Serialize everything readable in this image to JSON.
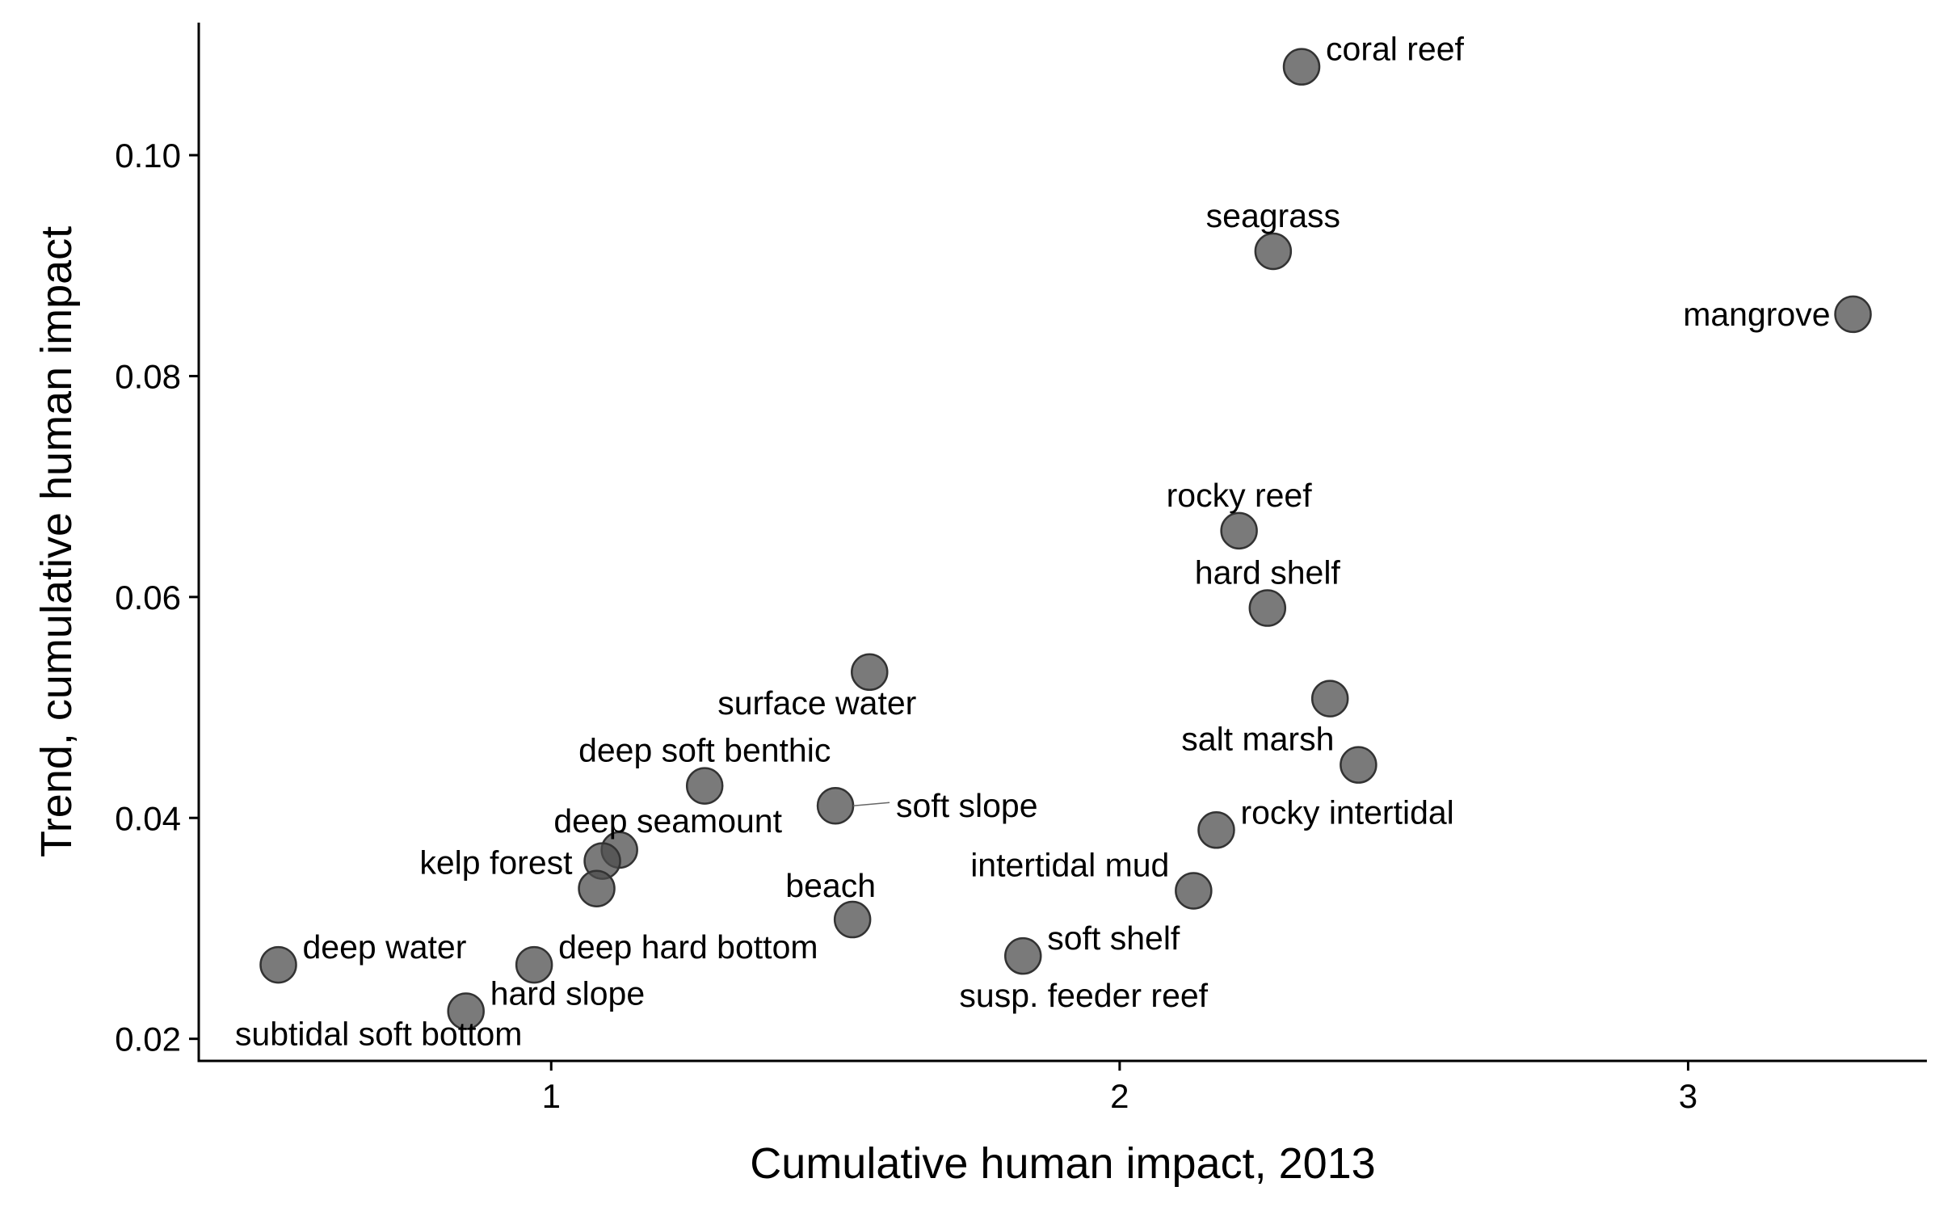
{
  "chart_data": {
    "type": "scatter",
    "title": "",
    "xlabel": "Cumulative human impact, 2013",
    "ylabel": "Trend, cumulative human impact",
    "xlim": [
      0.38,
      3.42
    ],
    "ylim": [
      0.018,
      0.112
    ],
    "xticks": [
      1,
      2,
      3
    ],
    "yticks": [
      0.02,
      0.04,
      0.06,
      0.08,
      0.1
    ],
    "xtick_labels": [
      "1",
      "2",
      "3"
    ],
    "ytick_labels": [
      "0.02",
      "0.04",
      "0.06",
      "0.08",
      "0.10"
    ],
    "grid": false,
    "legend": false,
    "point_color": "#4d4d4d",
    "points": [
      {
        "x": 2.32,
        "y": 0.108,
        "label": "coral reef",
        "label_pos": "upper-right"
      },
      {
        "x": 2.27,
        "y": 0.0913,
        "label": "seagrass",
        "label_pos": "above"
      },
      {
        "x": 3.29,
        "y": 0.0856,
        "label": "mangrove",
        "label_pos": "left"
      },
      {
        "x": 2.21,
        "y": 0.066,
        "label": "rocky reef",
        "label_pos": "above"
      },
      {
        "x": 2.26,
        "y": 0.059,
        "label": "hard shelf",
        "label_pos": "above"
      },
      {
        "x": 2.37,
        "y": 0.0508,
        "label": "",
        "label_pos": "none"
      },
      {
        "x": 2.42,
        "y": 0.0448,
        "label": "salt marsh",
        "label_pos": "upper-left"
      },
      {
        "x": 2.17,
        "y": 0.0389,
        "label": "rocky intertidal",
        "label_pos": "upper-right"
      },
      {
        "x": 2.13,
        "y": 0.0334,
        "label": "intertidal mud",
        "label_pos": "upper-left"
      },
      {
        "x": 1.83,
        "y": 0.0275,
        "label": "soft shelf",
        "label_pos": "upper-right"
      },
      {
        "x": 1.83,
        "y": 0.0275,
        "label": "susp. feeder reef",
        "label_pos": "below"
      },
      {
        "x": 1.56,
        "y": 0.0532,
        "label": "surface water",
        "label_pos": "below-left"
      },
      {
        "x": 1.5,
        "y": 0.0411,
        "label": "soft slope",
        "label_pos": "right-leader"
      },
      {
        "x": 1.53,
        "y": 0.0308,
        "label": "beach",
        "label_pos": "above-left"
      },
      {
        "x": 1.27,
        "y": 0.0429,
        "label": "deep soft benthic",
        "label_pos": "above"
      },
      {
        "x": 1.12,
        "y": 0.0371,
        "label": "deep seamount",
        "label_pos": "above-right"
      },
      {
        "x": 1.09,
        "y": 0.0361,
        "label": "",
        "label_pos": "none"
      },
      {
        "x": 1.08,
        "y": 0.0336,
        "label": "kelp forest",
        "label_pos": "upper-left"
      },
      {
        "x": 0.97,
        "y": 0.0267,
        "label": "deep hard bottom",
        "label_pos": "upper-right"
      },
      {
        "x": 0.52,
        "y": 0.0267,
        "label": "deep water",
        "label_pos": "upper-right"
      },
      {
        "x": 0.85,
        "y": 0.0225,
        "label": "hard slope",
        "label_pos": "upper-right"
      },
      {
        "x": 0.85,
        "y": 0.0225,
        "label": "subtidal soft bottom",
        "label_pos": "lower-left"
      }
    ]
  }
}
